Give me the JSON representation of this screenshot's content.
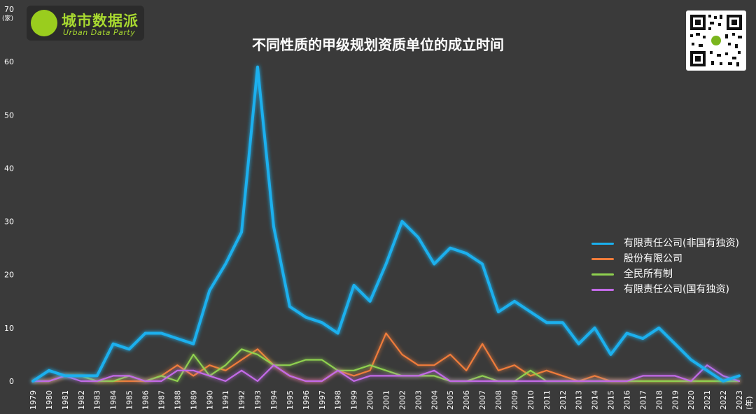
{
  "logo": {
    "cn": "城市数据派",
    "en": "Urban Data Party"
  },
  "chart_data": {
    "type": "line",
    "title": "不同性质的甲级规划资质单位的成立时间",
    "ylabel_value": "70",
    "yunit": "(家)",
    "xunit": "(年)",
    "ylim": [
      0,
      70
    ],
    "yticks": [
      0,
      10,
      20,
      30,
      40,
      50,
      60
    ],
    "grid": false,
    "legend_position": "right",
    "x": [
      1979,
      1980,
      1981,
      1982,
      1983,
      1984,
      1985,
      1986,
      1987,
      1988,
      1989,
      1990,
      1991,
      1992,
      1993,
      1994,
      1995,
      1996,
      1997,
      1998,
      1999,
      2000,
      2001,
      2002,
      2003,
      2004,
      2005,
      2006,
      2007,
      2008,
      2009,
      2010,
      2011,
      2012,
      2013,
      2014,
      2015,
      2016,
      2017,
      2018,
      2019,
      2020,
      2021,
      2022,
      2023
    ],
    "series": [
      {
        "name": "有限责任公司(非国有独资)",
        "color": "#1ab0ee",
        "values": [
          0,
          2,
          1,
          1,
          1,
          7,
          6,
          9,
          9,
          8,
          7,
          17,
          22,
          28,
          59,
          29,
          14,
          12,
          11,
          9,
          18,
          15,
          22,
          30,
          27,
          22,
          25,
          24,
          22,
          13,
          15,
          13,
          11,
          11,
          7,
          10,
          5,
          9,
          8,
          10,
          7,
          4,
          2,
          0,
          1
        ]
      },
      {
        "name": "股份有限公司",
        "color": "#f07c3a",
        "values": [
          0,
          0,
          1,
          1,
          0,
          0,
          0,
          0,
          1,
          3,
          1,
          3,
          2,
          4,
          6,
          3,
          1,
          0,
          0,
          2,
          1,
          2,
          9,
          5,
          3,
          3,
          5,
          2,
          7,
          2,
          3,
          1,
          2,
          1,
          0,
          1,
          0,
          0,
          0,
          0,
          0,
          0,
          0,
          0,
          0
        ]
      },
      {
        "name": "全民所有制",
        "color": "#8fd14f",
        "values": [
          0,
          0,
          1,
          1,
          0,
          0,
          1,
          0,
          1,
          0,
          5,
          1,
          3,
          6,
          5,
          3,
          3,
          4,
          4,
          2,
          2,
          3,
          2,
          1,
          1,
          1,
          0,
          0,
          1,
          0,
          0,
          2,
          0,
          0,
          0,
          0,
          0,
          0,
          0,
          0,
          0,
          0,
          0,
          0,
          0
        ]
      },
      {
        "name": "有限责任公司(国有独资)",
        "color": "#c36be8",
        "values": [
          0,
          0,
          1,
          0,
          0,
          1,
          1,
          0,
          0,
          2,
          2,
          1,
          0,
          2,
          0,
          3,
          1,
          0,
          0,
          2,
          0,
          1,
          1,
          1,
          1,
          2,
          0,
          0,
          0,
          0,
          0,
          0,
          0,
          0,
          0,
          0,
          0,
          0,
          1,
          1,
          1,
          0,
          3,
          1,
          0
        ]
      }
    ]
  }
}
